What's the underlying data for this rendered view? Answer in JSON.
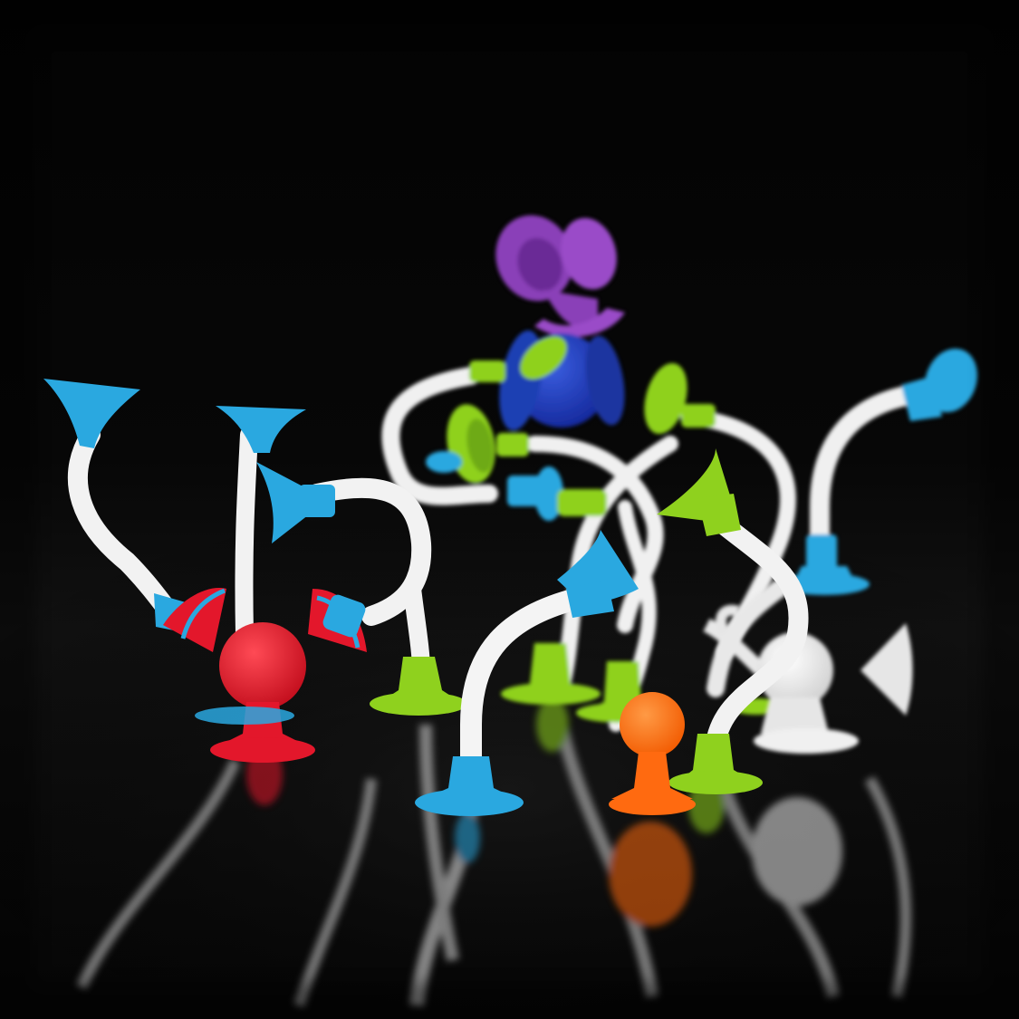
{
  "photo": {
    "subject": "suction-cup-toy-pieces",
    "background_color": "#020202",
    "floor_color": "#0b0b0b",
    "colors": {
      "blue": "#2aa8e0",
      "lime": "#8fd11e",
      "purple": "#8a3fb8",
      "navy": "#1f3fb3",
      "red": "#e3172b",
      "orange": "#ff6a10",
      "white": "#f0f0f0"
    }
  }
}
